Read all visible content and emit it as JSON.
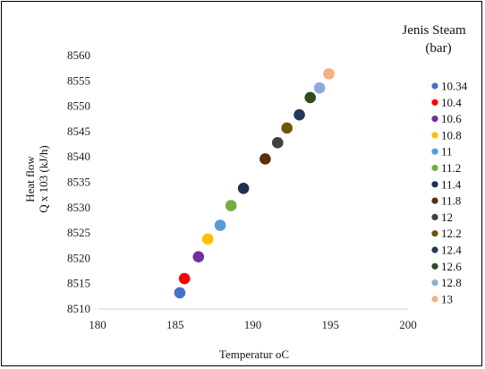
{
  "chart_data": {
    "type": "scatter",
    "xlabel": "Temperatur oC",
    "ylabel_line1": "Heat flow",
    "ylabel_line2": "Q x 103 (kJ/h)",
    "xlim": [
      180,
      200
    ],
    "ylim": [
      8510,
      8560
    ],
    "x_ticks": [
      180,
      185,
      190,
      195,
      200
    ],
    "y_ticks": [
      8510,
      8515,
      8520,
      8525,
      8530,
      8535,
      8540,
      8545,
      8550,
      8555,
      8560
    ],
    "grid": false,
    "legend_position": "right",
    "legend_title_line1": "Jenis Steam",
    "legend_title_line2": "(bar)",
    "series": [
      {
        "name": "10.34",
        "x": 185.3,
        "y": 8513.2,
        "color": "#4472C4"
      },
      {
        "name": "10.4",
        "x": 185.6,
        "y": 8516.0,
        "color": "#FF0000"
      },
      {
        "name": "10.6",
        "x": 186.5,
        "y": 8520.3,
        "color": "#7030A0"
      },
      {
        "name": "10.8",
        "x": 187.1,
        "y": 8523.8,
        "color": "#FFC000"
      },
      {
        "name": "11",
        "x": 187.9,
        "y": 8526.5,
        "color": "#5B9BD5"
      },
      {
        "name": "11.2",
        "x": 188.6,
        "y": 8530.4,
        "color": "#70AD47"
      },
      {
        "name": "11.4",
        "x": 189.4,
        "y": 8533.8,
        "color": "#1F3050"
      },
      {
        "name": "11.8",
        "x": 190.8,
        "y": 8539.6,
        "color": "#5C2E10"
      },
      {
        "name": "12",
        "x": 191.6,
        "y": 8542.8,
        "color": "#404040"
      },
      {
        "name": "12.2",
        "x": 192.2,
        "y": 8545.7,
        "color": "#6E5410"
      },
      {
        "name": "12.4",
        "x": 193.0,
        "y": 8548.3,
        "color": "#203C5C"
      },
      {
        "name": "12.6",
        "x": 193.7,
        "y": 8551.7,
        "color": "#2F4B22"
      },
      {
        "name": "12.8",
        "x": 194.3,
        "y": 8553.6,
        "color": "#8EA9DB"
      },
      {
        "name": "13",
        "x": 194.9,
        "y": 8556.4,
        "color": "#F4B183"
      }
    ]
  }
}
